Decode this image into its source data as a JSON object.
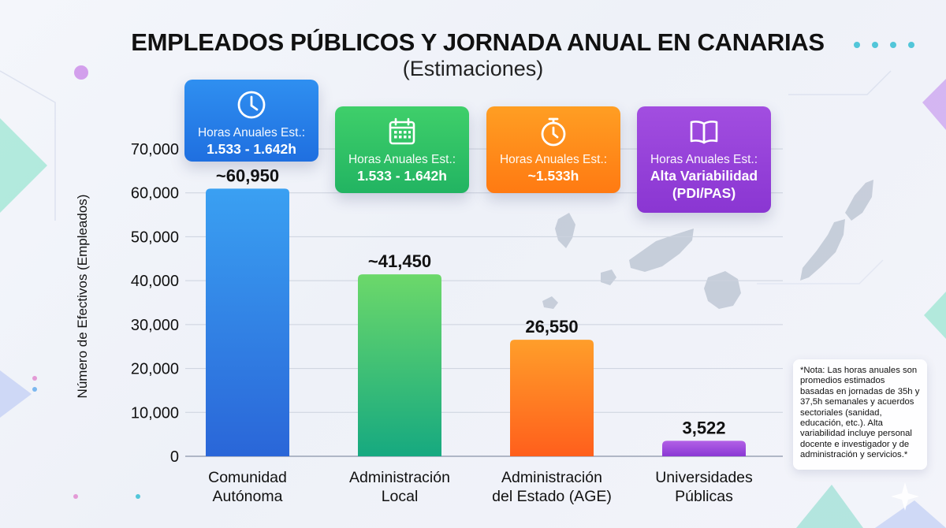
{
  "title": "EMPLEADOS PÚBLICOS Y JORNADA ANUAL EN CANARIAS",
  "subtitle": "(Estimaciones)",
  "badges": [
    {
      "icon": "clock-icon",
      "label": "Horas Anuales Est.:",
      "value": "1.533 - 1.642h",
      "color": "#2f8ff0"
    },
    {
      "icon": "calendar-icon",
      "label": "Horas Anuales Est.:",
      "value": "1.533 - 1.642h",
      "color": "#3fcf6a"
    },
    {
      "icon": "stopwatch-icon",
      "label": "Horas Anuales Est.:",
      "value": "~1.533h",
      "color": "#ff9e23"
    },
    {
      "icon": "book-icon",
      "label": "Horas Anuales Est.:",
      "value": "Alta Variabilidad (PDI/PAS)",
      "color": "#a24ee0"
    }
  ],
  "note": "*Nota: Las horas anuales son promedios estimados basadas en jornadas de 35h y 37,5h semanales y acuerdos sectoriales (sanidad, educación, etc.). Alta variabilidad incluye personal docente e investigador y de administración y servicios.*",
  "chart_data": {
    "type": "bar",
    "categories": [
      "Comunidad Autónoma",
      "Administración Local",
      "Administración del Estado (AGE)",
      "Universidades Públicas"
    ],
    "category_lines": [
      [
        "Comunidad",
        "Autónoma"
      ],
      [
        "Administración",
        "Local"
      ],
      [
        "Administración",
        "del Estado (AGE)"
      ],
      [
        "Universidades",
        "Públicas"
      ]
    ],
    "values": [
      60950,
      41450,
      26550,
      3522
    ],
    "data_labels": [
      "~60,950",
      "~41,450",
      "26,550",
      "3,522"
    ],
    "ylabel": "Número de Efectivos (Empleados)",
    "xlabel": "",
    "ylim": [
      0,
      70000
    ],
    "yticks": [
      0,
      10000,
      20000,
      30000,
      40000,
      50000,
      60000,
      70000
    ],
    "ytick_labels": [
      "0",
      "10,000",
      "20,000",
      "30,000",
      "40,000",
      "50,000",
      "60,000",
      "70,000"
    ],
    "grid": true,
    "bar_colors": [
      [
        "#3aa0f2",
        "#2a66d8"
      ],
      [
        "#6cd86a",
        "#16a980"
      ],
      [
        "#ff9e2a",
        "#ff5f1c"
      ],
      [
        "#b260e6",
        "#8a38d4"
      ]
    ]
  }
}
